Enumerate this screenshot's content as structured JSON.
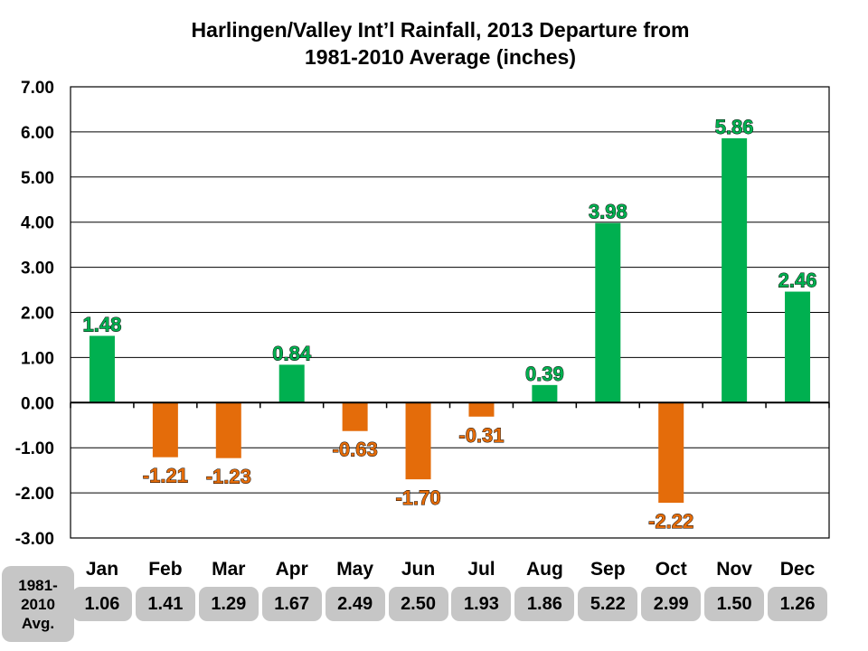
{
  "title_line1": "Harlingen/Valley Int’l Rainfall, 2013 Departure from",
  "title_line2": "1981-2010 Average (inches)",
  "avg_label_line1": "1981-",
  "avg_label_line2": "2010",
  "avg_label_line3": "Avg.",
  "colors": {
    "positive": "#00b050",
    "negative": "#e46c0a",
    "gridline": "#000000",
    "avg_cell": "#c6c6c6"
  },
  "chart_data": {
    "type": "bar",
    "title": "Harlingen/Valley Int’l Rainfall, 2013 Departure from 1981-2010 Average (inches)",
    "categories": [
      "Jan",
      "Feb",
      "Mar",
      "Apr",
      "May",
      "Jun",
      "Jul",
      "Aug",
      "Sep",
      "Oct",
      "Nov",
      "Dec"
    ],
    "values": [
      1.48,
      -1.21,
      -1.23,
      0.84,
      -0.63,
      -1.7,
      -0.31,
      0.39,
      3.98,
      -2.22,
      5.86,
      2.46
    ],
    "data_labels": [
      "1.48",
      "-1.21",
      "-1.23",
      "0.84",
      "-0.63",
      "-1.70",
      "-0.31",
      "0.39",
      "3.98",
      "-2.22",
      "5.86",
      "2.46"
    ],
    "ylim": [
      -3,
      7
    ],
    "yticks": [
      7,
      6,
      5,
      4,
      3,
      2,
      1,
      0,
      -1,
      -2,
      -3
    ],
    "ytick_labels": [
      "7.00",
      "6.00",
      "5.00",
      "4.00",
      "3.00",
      "2.00",
      "1.00",
      "0.00",
      "-1.00",
      "-2.00",
      "-3.00"
    ],
    "grid": true,
    "xlabel": "",
    "ylabel": ""
  },
  "averages": [
    "1.06",
    "1.41",
    "1.29",
    "1.67",
    "2.49",
    "2.50",
    "1.93",
    "1.86",
    "5.22",
    "2.99",
    "1.50",
    "1.26"
  ]
}
